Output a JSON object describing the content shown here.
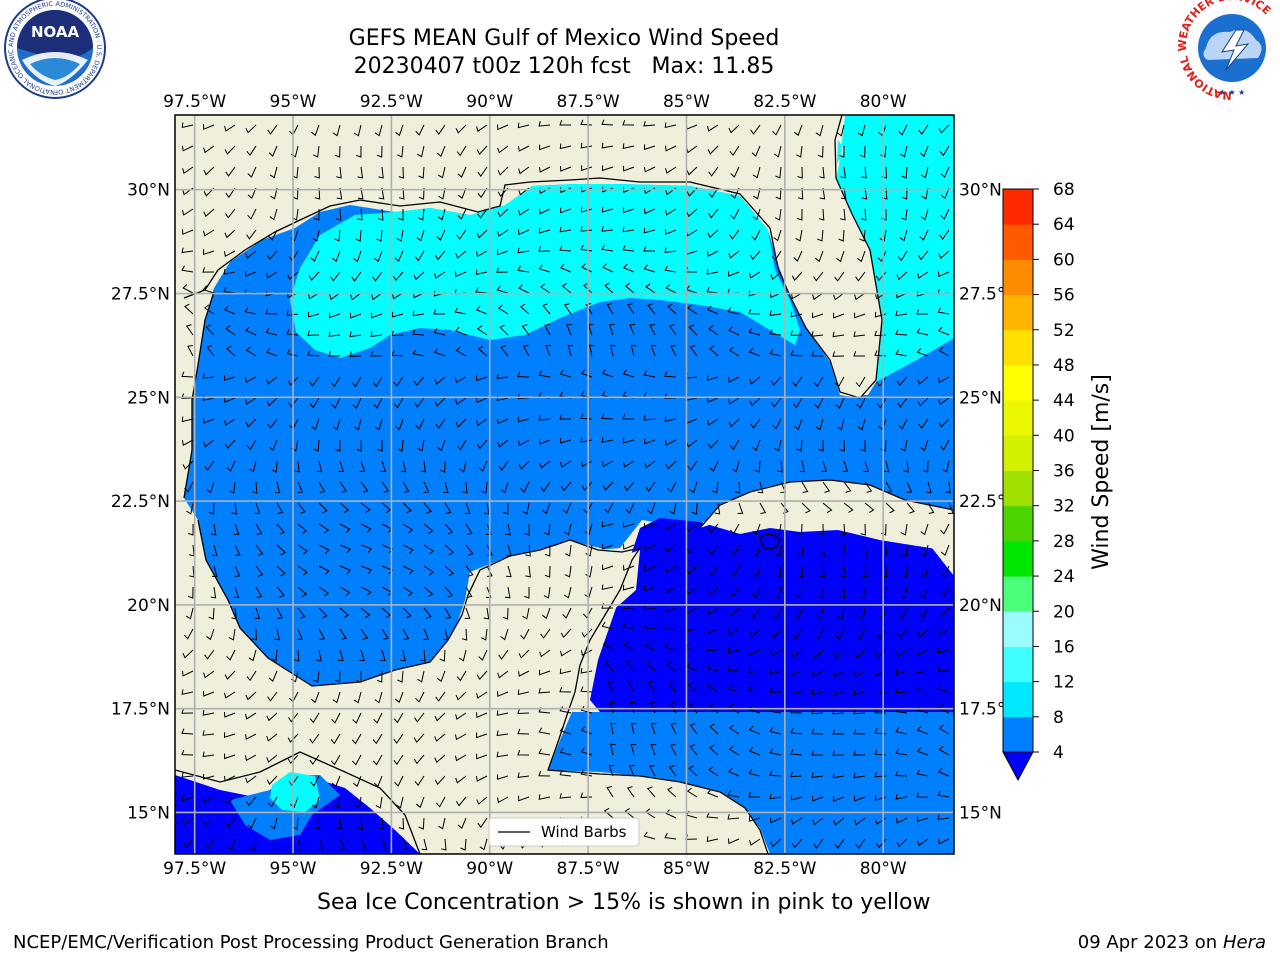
{
  "title": {
    "line1": "GEFS MEAN Gulf of Mexico Wind Speed",
    "line2": "20230407 t00z 120h fcst   Max: 11.85"
  },
  "caption": "Sea Ice Concentration > 15% is shown in pink to yellow",
  "footer": {
    "left": "NCEP/EMC/Verification Post Processing Product Generation Branch",
    "right_date": "09 Apr 2023 on ",
    "right_host": "Hera"
  },
  "logos": {
    "noaa_text": "NOAA",
    "noaa_ring": "NATIONAL OCEANIC AND ATMOSPHERIC ADMINISTRATION · U.S. DEPARTMENT OF COMMERCE",
    "nws_ring": "NATIONAL WEATHER SERVICE"
  },
  "axes": {
    "lon_ticks": [
      "97.5°W",
      "95°W",
      "92.5°W",
      "90°W",
      "87.5°W",
      "85°W",
      "82.5°W",
      "80°W"
    ],
    "lon_values": [
      -97.5,
      -95,
      -92.5,
      -90,
      -87.5,
      -85,
      -82.5,
      -80
    ],
    "lat_ticks": [
      "30°N",
      "27.5°N",
      "25°N",
      "22.5°N",
      "20°N",
      "17.5°N",
      "15°N"
    ],
    "lat_values": [
      30,
      27.5,
      25,
      22.5,
      20,
      17.5,
      15
    ],
    "lon_range": [
      -98,
      -78.2
    ],
    "lat_range": [
      14,
      31.8
    ]
  },
  "legend": {
    "label": "Wind Barbs"
  },
  "colorbar": {
    "label": "Wind Speed [m/s]",
    "ticks": [
      "4",
      "8",
      "12",
      "16",
      "20",
      "24",
      "28",
      "32",
      "36",
      "40",
      "44",
      "48",
      "52",
      "56",
      "60",
      "64",
      "68"
    ],
    "colors": [
      "#0080ff",
      "#00e8ff",
      "#40ffff",
      "#9bfcff",
      "#4cff7a",
      "#00e600",
      "#4cd400",
      "#a0e000",
      "#d2f000",
      "#ecf800",
      "#ffff00",
      "#ffe000",
      "#ffb400",
      "#ff8c00",
      "#ff5a00",
      "#ff2a00",
      "#ff0000"
    ],
    "extend_color": "#0000ff"
  },
  "colors": {
    "land": "#efefdc",
    "speed_lt4": "#0000ff",
    "speed_4_8": "#0080ff",
    "speed_8_12": "#00ffff"
  }
}
